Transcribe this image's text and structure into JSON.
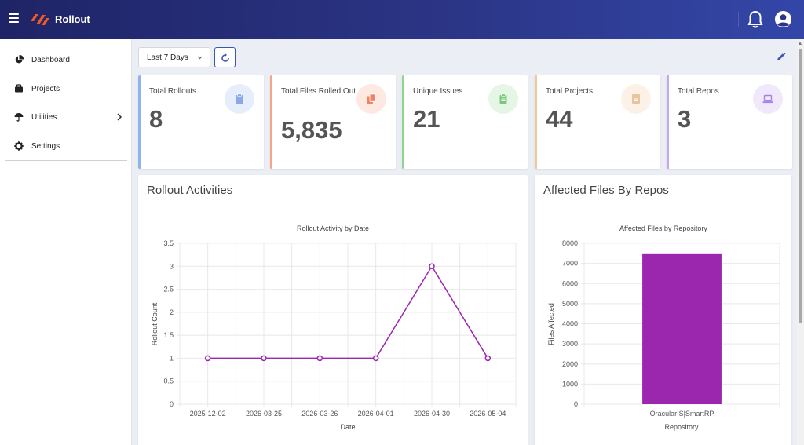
{
  "app": {
    "title": "Rollout"
  },
  "sidebar": {
    "items": [
      {
        "label": "Dashboard",
        "icon": "pie-chart-icon"
      },
      {
        "label": "Projects",
        "icon": "briefcase-icon"
      },
      {
        "label": "Utilities",
        "icon": "umbrella-icon",
        "has_submenu": true
      },
      {
        "label": "Settings",
        "icon": "gear-icon"
      }
    ]
  },
  "toolbar": {
    "date_filter": "Last 7 Days"
  },
  "stats": [
    {
      "title": "Total Rollouts",
      "value": "8",
      "accent": "#8eb4ee",
      "icon": "clipboard-icon",
      "icon_bg": "#e6eefc",
      "icon_color": "#8aa9e6"
    },
    {
      "title": "Total Files Rolled Out",
      "value": "5,835",
      "accent": "#f3a58c",
      "icon": "copy-icon",
      "icon_bg": "#fde9e2",
      "icon_color": "#f08363"
    },
    {
      "title": "Unique Issues",
      "value": "21",
      "accent": "#8fd48f",
      "icon": "clipboard-list-icon",
      "icon_bg": "#e6f6e6",
      "icon_color": "#79c879"
    },
    {
      "title": "Total Projects",
      "value": "44",
      "accent": "#f0c99a",
      "icon": "server-icon",
      "icon_bg": "#fbf1e6",
      "icon_color": "#e7c49e"
    },
    {
      "title": "Total Repos",
      "value": "3",
      "accent": "#c5a7ef",
      "icon": "laptop-icon",
      "icon_bg": "#f0e9fc",
      "icon_color": "#a77fe8"
    }
  ],
  "panels": {
    "activities_title": "Rollout Activities",
    "repos_title": "Affected Files By Repos"
  },
  "colors": {
    "accent": "#9b27af",
    "brand": "#2b3585"
  },
  "chart_data": [
    {
      "type": "line",
      "title": "Rollout Activity by Date",
      "xlabel": "Date",
      "ylabel": "Rollout Count",
      "categories": [
        "2025-12-02",
        "2026-03-25",
        "2026-03-26",
        "2026-04-01",
        "2026-04-30",
        "2026-05-04"
      ],
      "values": [
        1,
        1,
        1,
        1,
        3,
        1
      ],
      "ylim": [
        0,
        3.5
      ],
      "yticks": [
        "0",
        "0.5",
        "1",
        "1.5",
        "2",
        "2.5",
        "3",
        "3.5"
      ],
      "grid": true,
      "color": "#9b27af"
    },
    {
      "type": "bar",
      "title": "Affected Files by Repository",
      "xlabel": "Repository",
      "ylabel": "Files Affected",
      "categories": [
        "OracularIS|SmartRP"
      ],
      "values": [
        7500
      ],
      "ylim": [
        0,
        8000
      ],
      "yticks": [
        "0",
        "1000",
        "2000",
        "3000",
        "4000",
        "5000",
        "6000",
        "7000",
        "8000"
      ],
      "grid": true,
      "color": "#9b27af"
    }
  ]
}
